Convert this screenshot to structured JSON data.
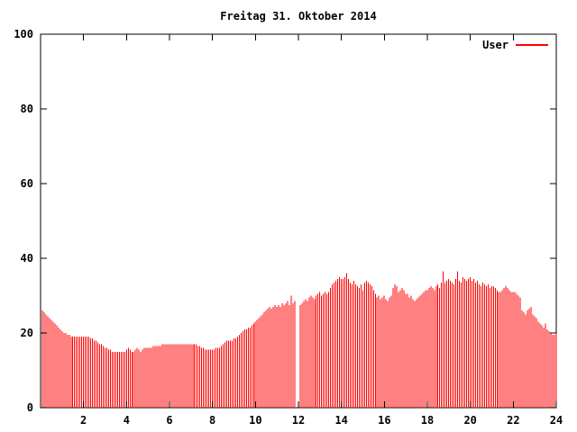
{
  "window": {
    "title": "Freitag 31. Oktober 2014"
  },
  "colors": {
    "background": "#ffffff",
    "series_user": "#ff0000",
    "axis": "#000000",
    "text": "#000000"
  },
  "legend": {
    "position": "top-right-inside",
    "entries": [
      {
        "label": "User",
        "color": "#ff0000",
        "sample": "line"
      }
    ]
  },
  "chart_data": {
    "type": "bar",
    "subtype": "impulses",
    "title": "Freitag 31. Oktober 2014",
    "xlabel": "",
    "ylabel": "",
    "xlim": [
      0,
      24
    ],
    "ylim": [
      0,
      100
    ],
    "x_ticks": [
      2,
      4,
      6,
      8,
      10,
      12,
      14,
      16,
      18,
      20,
      22,
      24
    ],
    "y_ticks": [
      0,
      20,
      40,
      60,
      80,
      100
    ],
    "grid": false,
    "legend_position": "top-right-inside",
    "x_unit": "hour-of-day",
    "x_start_hours": 0.0833,
    "x_step_hours": 0.0833,
    "series": [
      {
        "name": "User",
        "color": "#ff0000",
        "values": [
          26,
          25.5,
          25,
          24.5,
          24,
          23.5,
          23,
          22.5,
          22,
          21.5,
          21,
          20.5,
          20,
          20,
          19.5,
          19.5,
          19,
          19,
          19,
          19,
          19,
          19,
          19,
          19,
          19,
          19,
          19,
          18.5,
          18.5,
          18,
          18,
          17.5,
          17,
          17,
          16.5,
          16,
          16,
          15.5,
          15.5,
          15,
          15,
          15,
          15,
          15,
          15,
          15,
          15,
          15.5,
          16,
          15.5,
          15,
          15,
          15.5,
          16,
          15.5,
          15,
          15.5,
          16,
          16,
          16,
          16,
          16,
          16.5,
          16.5,
          16.5,
          16.5,
          16.5,
          17,
          17,
          17,
          17,
          17,
          17,
          17,
          17,
          17,
          17,
          17,
          17,
          17,
          17,
          17,
          17,
          17,
          17,
          17,
          17,
          16.5,
          16.5,
          16,
          16,
          15.5,
          15.5,
          15.5,
          15.5,
          15.5,
          15.5,
          16,
          16,
          16,
          16.5,
          17,
          17.5,
          18,
          18,
          18,
          18,
          18.5,
          18.5,
          19,
          19.5,
          20,
          20.5,
          21,
          21,
          21.5,
          21.5,
          22,
          22.5,
          23,
          23.5,
          24,
          24.5,
          25,
          25.5,
          26,
          26.5,
          27,
          26.5,
          27,
          27.5,
          27,
          27.5,
          27,
          28,
          27.5,
          28,
          28.5,
          27.5,
          30,
          28,
          28.5,
          null,
          null,
          27.5,
          28,
          28.5,
          29,
          28.5,
          29.5,
          30,
          29.5,
          29,
          30,
          30.5,
          31,
          30,
          30.5,
          31,
          30.5,
          31,
          32,
          33,
          33.5,
          34,
          34.5,
          35,
          34.5,
          34.5,
          35,
          36,
          34.5,
          33.5,
          33,
          34,
          33,
          32.5,
          32,
          33,
          31.5,
          33.5,
          34,
          33.5,
          33,
          32.5,
          31.5,
          30.5,
          29.5,
          30,
          29,
          29.5,
          30,
          29,
          28.5,
          29.5,
          30,
          32,
          33,
          32.5,
          31,
          31.5,
          32,
          31.5,
          30.5,
          30.5,
          29.5,
          30,
          29,
          28.5,
          29,
          29.5,
          30,
          30.5,
          31,
          31.5,
          31.5,
          32,
          32.5,
          32,
          31.5,
          32.5,
          33,
          32,
          33.5,
          36.5,
          33.5,
          34,
          34.5,
          34,
          33.5,
          33,
          34.5,
          36.5,
          34,
          33.5,
          35,
          34.5,
          34,
          34.5,
          35,
          34,
          34.5,
          33.5,
          34,
          33,
          32.5,
          33.5,
          33,
          32.5,
          33,
          32,
          32.5,
          32.5,
          32,
          31.5,
          31,
          31,
          31.5,
          32,
          32.5,
          32,
          31.5,
          31,
          31,
          31,
          30.5,
          30,
          29.5,
          26,
          25.5,
          25,
          26,
          26.5,
          27,
          25,
          24.5,
          24,
          23,
          22.5,
          22,
          21.5,
          22.5,
          21,
          20.5,
          20,
          19.5,
          19.5,
          20
        ]
      }
    ]
  }
}
